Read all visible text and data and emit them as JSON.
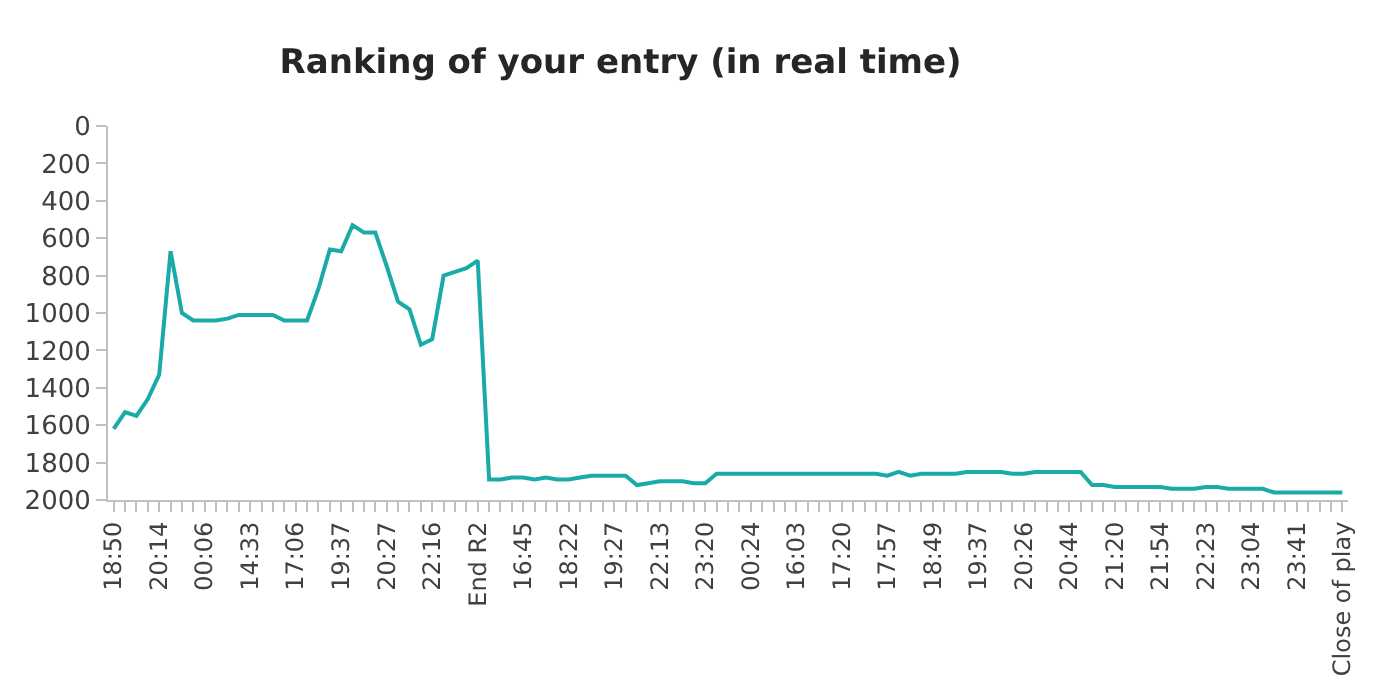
{
  "chart_data": {
    "type": "line",
    "title": "Ranking of your entry (in real time)",
    "categories": [
      "18:50",
      null,
      null,
      null,
      "20:14",
      null,
      null,
      null,
      "00:06",
      null,
      null,
      null,
      "14:33",
      null,
      null,
      null,
      "17:06",
      null,
      null,
      null,
      "19:37",
      null,
      null,
      null,
      "20:27",
      null,
      null,
      null,
      "22:16",
      null,
      null,
      null,
      "End R2",
      null,
      null,
      null,
      "16:45",
      null,
      null,
      null,
      "18:22",
      null,
      null,
      null,
      "19:27",
      null,
      null,
      null,
      "22:13",
      null,
      null,
      null,
      "23:20",
      null,
      null,
      null,
      "00:24",
      null,
      null,
      null,
      "16:03",
      null,
      null,
      null,
      "17:20",
      null,
      null,
      null,
      "17:57",
      null,
      null,
      null,
      "18:49",
      null,
      null,
      null,
      "19:37",
      null,
      null,
      null,
      "20:26",
      null,
      null,
      null,
      "20:44",
      null,
      null,
      null,
      "21:20",
      null,
      null,
      null,
      "21:54",
      null,
      null,
      null,
      "22:23",
      null,
      null,
      null,
      "23:04",
      null,
      null,
      null,
      "23:41",
      null,
      null,
      null,
      "Close of play"
    ],
    "series": [
      {
        "color": "#1aaba8",
        "values": [
          1620,
          1530,
          1550,
          1460,
          1330,
          670,
          1000,
          1040,
          1040,
          1040,
          1030,
          1010,
          1010,
          1010,
          1010,
          1040,
          1040,
          1040,
          870,
          660,
          670,
          530,
          570,
          570,
          750,
          940,
          980,
          1170,
          1140,
          800,
          780,
          760,
          720,
          1890,
          1890,
          1880,
          1880,
          1890,
          1880,
          1890,
          1890,
          1880,
          1870,
          1870,
          1870,
          1870,
          1920,
          1910,
          1900,
          1900,
          1900,
          1910,
          1910,
          1860,
          1860,
          1860,
          1860,
          1860,
          1860,
          1860,
          1860,
          1860,
          1860,
          1860,
          1860,
          1860,
          1860,
          1860,
          1870,
          1850,
          1870,
          1860,
          1860,
          1860,
          1860,
          1850,
          1850,
          1850,
          1850,
          1860,
          1860,
          1850,
          1850,
          1850,
          1850,
          1850,
          1920,
          1920,
          1930,
          1930,
          1930,
          1930,
          1930,
          1940,
          1940,
          1940,
          1930,
          1930,
          1940,
          1940,
          1940,
          1940,
          1960,
          1960,
          1960,
          1960,
          1960,
          1960,
          1960
        ]
      }
    ],
    "ylim": [
      2000,
      0
    ],
    "yticks": [
      0,
      200,
      400,
      600,
      800,
      1000,
      1200,
      1400,
      1600,
      1800,
      2000
    ],
    "marker": "none",
    "line_style": "solid"
  }
}
